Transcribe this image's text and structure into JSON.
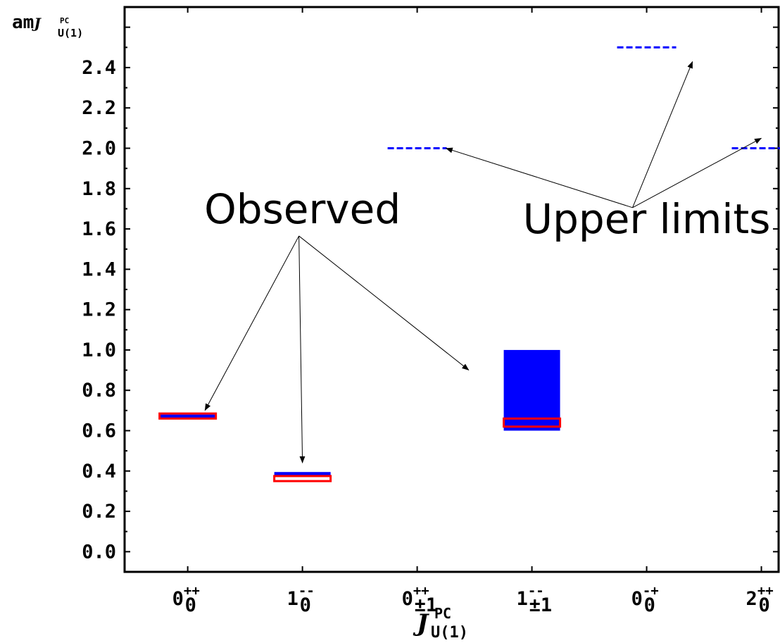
{
  "chart_data": {
    "type": "bar",
    "categories": [
      {
        "base": "0",
        "sub": "0",
        "sup": "++"
      },
      {
        "base": "1",
        "sub": "0",
        "sup": "--"
      },
      {
        "base": "0",
        "sub": "±1",
        "sup": "++"
      },
      {
        "base": "1",
        "sub": "±1",
        "sup": "--"
      },
      {
        "base": "0",
        "sub": "0",
        "sup": "-+"
      },
      {
        "base": "2",
        "sub": "0",
        "sup": "++"
      }
    ],
    "ylim": [
      -0.1,
      2.7
    ],
    "yticks": [
      "0.0",
      "0.2",
      "0.4",
      "0.6",
      "0.8",
      "1.0",
      "1.2",
      "1.4",
      "1.6",
      "1.8",
      "2.0",
      "2.2",
      "2.4"
    ],
    "ylabel": {
      "prefix": "am",
      "main": "J",
      "sup": "PC",
      "sub": "U(1)"
    },
    "xlabel": {
      "main": "J",
      "sup": "PC",
      "sub": "U(1)"
    },
    "series": [
      {
        "style": "filled-box",
        "color": "#0000ff",
        "values": [
          {
            "category": 0,
            "low": 0.66,
            "high": 0.68
          },
          {
            "category": 1,
            "low": 0.38,
            "high": 0.395
          },
          {
            "category": 3,
            "low": 0.6,
            "high": 1.0
          }
        ]
      },
      {
        "style": "outline-box",
        "color": "#ff0000",
        "values": [
          {
            "category": 0,
            "low": 0.66,
            "high": 0.685
          },
          {
            "category": 1,
            "low": 0.35,
            "high": 0.375
          },
          {
            "category": 3,
            "low": 0.62,
            "high": 0.66
          }
        ]
      },
      {
        "style": "dashed-line",
        "color": "#0000ff",
        "values": [
          {
            "category": 2,
            "value": 2.0
          },
          {
            "category": 4,
            "value": 2.5
          },
          {
            "category": 5,
            "value": 2.0
          }
        ]
      }
    ],
    "annotations": [
      {
        "text": "Observed",
        "x": 1.0,
        "y": 1.6,
        "targets": [
          [
            0.15,
            0.7
          ],
          [
            1.0,
            0.44
          ],
          [
            2.45,
            0.9
          ]
        ]
      },
      {
        "text": "Upper limits",
        "x": 4.0,
        "y": 1.58,
        "targets": [
          [
            2.25,
            2.0
          ],
          [
            4.4,
            2.43
          ],
          [
            5.0,
            2.05
          ]
        ]
      }
    ]
  }
}
